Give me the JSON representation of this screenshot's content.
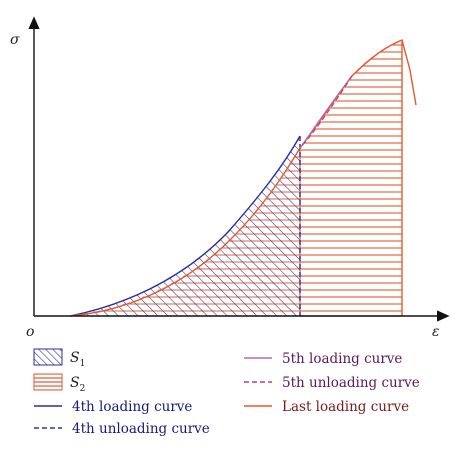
{
  "axes": {
    "y_label": "σ",
    "x_label": "ε",
    "origin_label": "o"
  },
  "legend": {
    "s1": {
      "symbol": "S",
      "sub": "1"
    },
    "s2": {
      "symbol": "S",
      "sub": "2"
    },
    "items": [
      {
        "key": "loading4",
        "label": "4th loading curve",
        "color": "#2e2e9a",
        "style": "solid"
      },
      {
        "key": "unloading4",
        "label": "4th unloading curve",
        "color": "#2e2e9a",
        "style": "dashed"
      },
      {
        "key": "loading5",
        "label": "5th loading curve",
        "color": "#b46ab4",
        "style": "solid"
      },
      {
        "key": "unloading5",
        "label": "5th unloading curve",
        "color": "#c0406a",
        "style": "dashed"
      },
      {
        "key": "last",
        "label": "Last loading curve",
        "color": "#e05a30",
        "style": "solid"
      }
    ]
  },
  "colors": {
    "s1_hatch": "#2e2e9a",
    "s2_hatch": "#e05a30",
    "axis": "#111111"
  }
}
